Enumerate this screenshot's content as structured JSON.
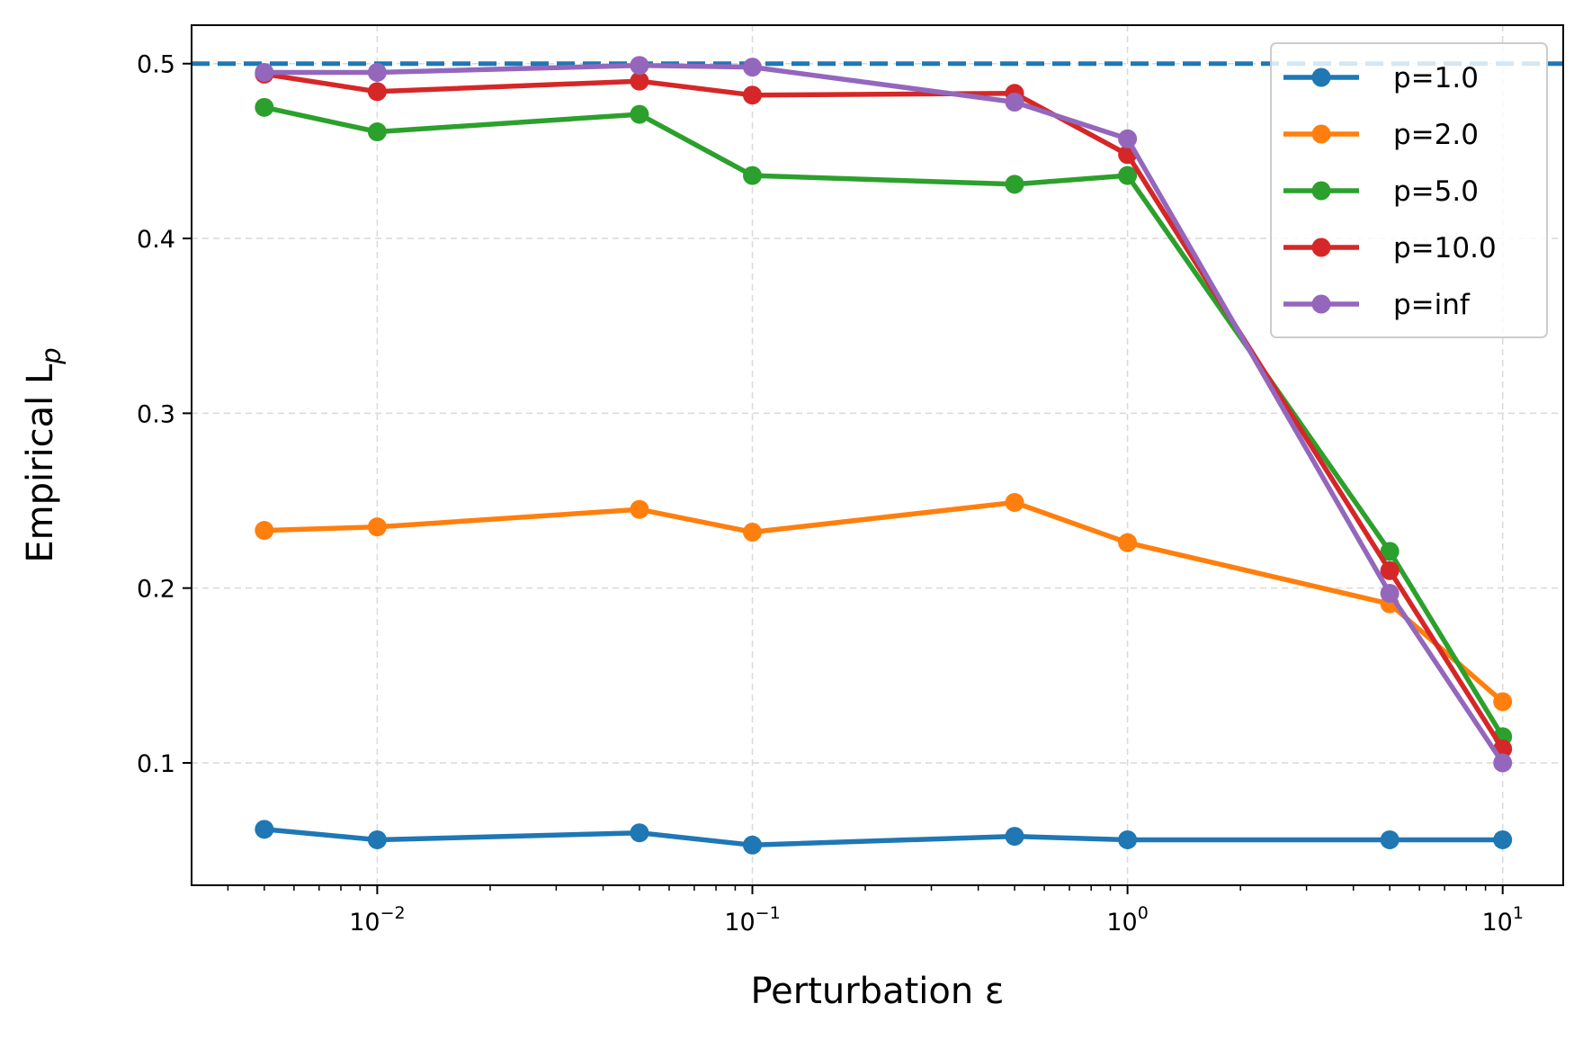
{
  "chart_data": {
    "type": "line",
    "title": "",
    "xlabel": "Perturbation ε",
    "ylabel": "Empirical L",
    "ylabel_subscript": "p",
    "xscale": "log",
    "xlim": [
      0.0032,
      14.5
    ],
    "ylim": [
      0.03,
      0.522
    ],
    "x": [
      0.005,
      0.01,
      0.05,
      0.1,
      0.5,
      1,
      5,
      10
    ],
    "x_ticks": [
      {
        "value": 0.01,
        "base": "10",
        "exp": "−2"
      },
      {
        "value": 0.1,
        "base": "10",
        "exp": "−1"
      },
      {
        "value": 1,
        "base": "10",
        "exp": "0"
      },
      {
        "value": 10,
        "base": "10",
        "exp": "1"
      }
    ],
    "y_ticks": [
      {
        "value": 0.1,
        "label": "0.1"
      },
      {
        "value": 0.2,
        "label": "0.2"
      },
      {
        "value": 0.3,
        "label": "0.3"
      },
      {
        "value": 0.4,
        "label": "0.4"
      },
      {
        "value": 0.5,
        "label": "0.5"
      }
    ],
    "reference_line": {
      "y": 0.5,
      "color": "#1f77b4",
      "style": "dashed"
    },
    "grid": true,
    "legend_position": "upper right",
    "series": [
      {
        "name": "p=1.0",
        "color": "#1f77b4",
        "values": [
          0.062,
          0.056,
          0.06,
          0.053,
          0.058,
          0.056,
          0.056,
          0.056
        ]
      },
      {
        "name": "p=2.0",
        "color": "#ff7f0e",
        "values": [
          0.233,
          0.235,
          0.245,
          0.232,
          0.249,
          0.226,
          0.191,
          0.135
        ]
      },
      {
        "name": "p=5.0",
        "color": "#2ca02c",
        "values": [
          0.475,
          0.461,
          0.471,
          0.436,
          0.431,
          0.436,
          0.221,
          0.115
        ]
      },
      {
        "name": "p=10.0",
        "color": "#d62728",
        "values": [
          0.494,
          0.484,
          0.49,
          0.482,
          0.483,
          0.448,
          0.21,
          0.108
        ]
      },
      {
        "name": "p=inf",
        "color": "#9467bd",
        "values": [
          0.495,
          0.495,
          0.499,
          0.498,
          0.478,
          0.457,
          0.197,
          0.1
        ]
      }
    ]
  }
}
